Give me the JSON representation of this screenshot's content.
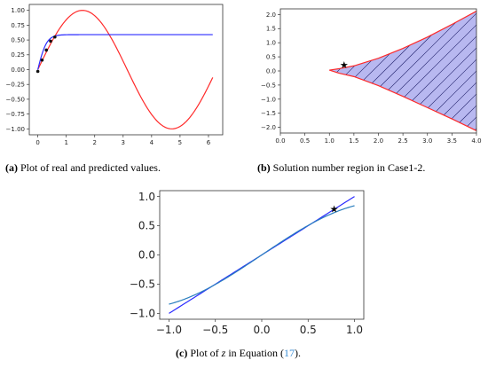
{
  "colors": {
    "red": "#ff2a2a",
    "blue": "#2a2aff",
    "teal": "#2b7fbf",
    "fill": "#b8b8f0",
    "hatch": "#1a1a66"
  },
  "captions": {
    "a": {
      "tag": "(a)",
      "text": " Plot of real and predicted values."
    },
    "b": {
      "tag": "(b)",
      "text": " Solution number region in Case1-2."
    },
    "c": {
      "tag": "(c)",
      "pre": " Plot of ",
      "var": "z",
      "mid": " in Equation (",
      "ref": "17",
      "post": ")."
    }
  },
  "chart_data": [
    {
      "type": "line",
      "xlim": [
        -0.3,
        6.5
      ],
      "ylim": [
        -1.1,
        1.1
      ],
      "xticks": [
        0,
        1,
        2,
        3,
        4,
        5,
        6
      ],
      "yticks": [
        -1.0,
        -0.75,
        -0.5,
        -0.25,
        0.0,
        0.25,
        0.5,
        0.75,
        1.0
      ],
      "ytick_labels": [
        "−1.00",
        "−0.75",
        "−0.50",
        "−0.25",
        "0.00",
        "0.25",
        "0.50",
        "0.75",
        "1.00"
      ],
      "series": [
        {
          "color": "red",
          "function": "sin(x)",
          "x_range": [
            0,
            6.15
          ]
        },
        {
          "color": "blue",
          "function": "0.59*tanh(x/0.31)",
          "x_range": [
            0,
            6.15
          ]
        }
      ],
      "points": [
        {
          "x": 0.0,
          "y": -0.03
        },
        {
          "x": 0.15,
          "y": 0.16
        },
        {
          "x": 0.3,
          "y": 0.33
        },
        {
          "x": 0.45,
          "y": 0.48
        },
        {
          "x": 0.6,
          "y": 0.55
        }
      ],
      "grid": false
    },
    {
      "type": "area",
      "xlim": [
        0.0,
        4.0
      ],
      "ylim": [
        -2.2,
        2.2
      ],
      "xticks": [
        0.0,
        0.5,
        1.0,
        1.5,
        2.0,
        2.5,
        3.0,
        3.5,
        4.0
      ],
      "xtick_labels": [
        "0.0",
        "0.5",
        "1.0",
        "1.5",
        "2.0",
        "2.5",
        "3.0",
        "3.5",
        "4.0"
      ],
      "yticks": [
        -2.0,
        -1.5,
        -1.0,
        -0.5,
        0.0,
        0.5,
        1.0,
        1.5,
        2.0
      ],
      "ytick_labels": [
        "−2.0",
        "−1.5",
        "−1.0",
        "−0.5",
        "0.0",
        "0.5",
        "1.0",
        "1.5",
        "2.0"
      ],
      "region": {
        "upper": [
          [
            1.0,
            0.03
          ],
          [
            1.2,
            0.08
          ],
          [
            1.5,
            0.18
          ],
          [
            2.0,
            0.45
          ],
          [
            2.5,
            0.8
          ],
          [
            3.0,
            1.2
          ],
          [
            3.5,
            1.65
          ],
          [
            4.0,
            2.12
          ]
        ],
        "lower": [
          [
            1.0,
            0.03
          ],
          [
            1.2,
            -0.08
          ],
          [
            1.5,
            -0.2
          ],
          [
            2.0,
            -0.52
          ],
          [
            2.5,
            -0.9
          ],
          [
            3.0,
            -1.3
          ],
          [
            3.5,
            -1.7
          ],
          [
            4.0,
            -2.12
          ]
        ],
        "hatch": "diagonal"
      },
      "marker": {
        "x": 1.3,
        "y": 0.2
      },
      "grid": false
    },
    {
      "type": "line",
      "xlim": [
        -1.1,
        1.1
      ],
      "ylim": [
        -1.1,
        1.1
      ],
      "xticks": [
        -1.0,
        -0.5,
        0.0,
        0.5,
        1.0
      ],
      "xtick_labels": [
        "−1.0",
        "−0.5",
        "0.0",
        "0.5",
        "1.0"
      ],
      "yticks": [
        -1.0,
        -0.5,
        0.0,
        0.5,
        1.0
      ],
      "ytick_labels": [
        "−1.0",
        "−0.5",
        "0.0",
        "0.5",
        "1.0"
      ],
      "series": [
        {
          "color": "blue",
          "function": "x",
          "x_range": [
            -1.0,
            1.0
          ]
        },
        {
          "color": "teal",
          "function": "0.85*sin(1.2*x)+0.05*x",
          "x_range": [
            -1.0,
            1.0
          ]
        }
      ],
      "marker": {
        "x": 0.78,
        "y": 0.78
      },
      "grid": false
    }
  ]
}
